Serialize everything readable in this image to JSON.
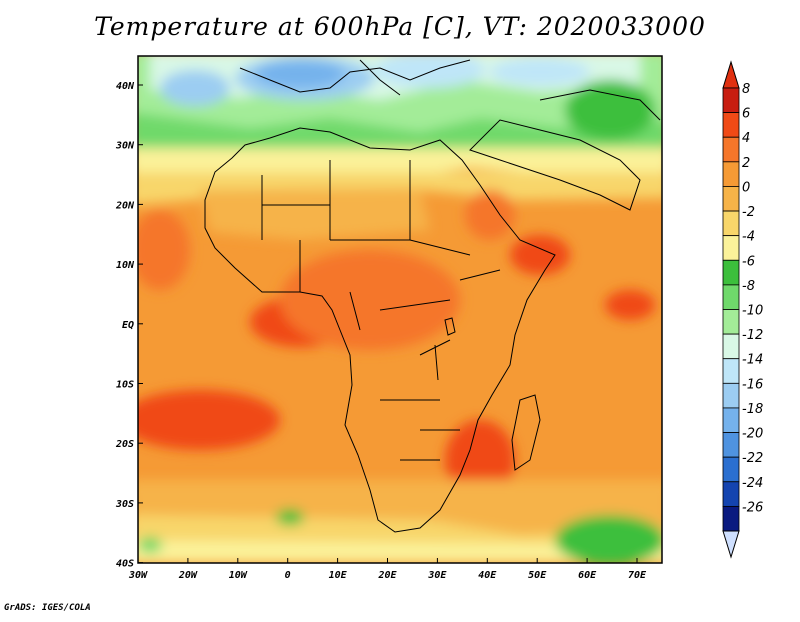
{
  "title": "Temperature at 600hPa [C], VT: 2020033000",
  "credit": "GrADS: IGES/COLA",
  "map": {
    "lon_ticks": [
      "30W",
      "20W",
      "10W",
      "0",
      "10E",
      "20E",
      "30E",
      "40E",
      "50E",
      "60E",
      "70E"
    ],
    "lat_ticks": [
      "40N",
      "30N",
      "20N",
      "10N",
      "EQ",
      "10S",
      "20S",
      "30S",
      "40S"
    ],
    "lon_range": [
      -30,
      75
    ],
    "lat_range": [
      -40,
      45
    ],
    "units": "C"
  },
  "colorbar": {
    "labels": [
      "8",
      "6",
      "4",
      "2",
      "0",
      "-2",
      "-4",
      "-6",
      "-8",
      "-10",
      "-12",
      "-14",
      "-16",
      "-18",
      "-20",
      "-22",
      "-24",
      "-26"
    ],
    "colors": [
      "#c81d10",
      "#f04a16",
      "#f5762a",
      "#f59a35",
      "#f6b348",
      "#f8d66a",
      "#fbf29a",
      "#3cbf3c",
      "#6fd96b",
      "#a3ec98",
      "#d9f8e6",
      "#bfe6f8",
      "#9ccdf2",
      "#75b2ec",
      "#4f93e0",
      "#2b6fd0",
      "#1444b0",
      "#0a1a80"
    ],
    "top_arrow_color": "#e03010",
    "bottom_arrow_color": "#cfe0ff"
  }
}
